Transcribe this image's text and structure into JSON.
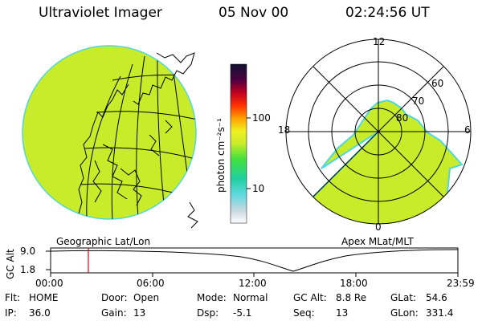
{
  "header": {
    "instrument": "Ultraviolet Imager",
    "date": "05 Nov 00",
    "time": "02:24:56 UT"
  },
  "colorbar": {
    "unit_label": "photon cm⁻²s⁻¹",
    "ticks": [
      "100",
      "10"
    ]
  },
  "globe_panel": {
    "label": "Geographic Lat/Lon"
  },
  "polar_panel": {
    "label": "Apex MLat/MLT",
    "mlt_labels": {
      "top": "12",
      "left": "18",
      "right": "6",
      "bottom": "0"
    },
    "lat_labels": [
      "60",
      "70",
      "80"
    ]
  },
  "altitude_plot": {
    "ylabel": "GC Alt",
    "y_ticks": [
      "9.0",
      "1.8"
    ],
    "x_ticks": [
      "00:00",
      "06:00",
      "12:00",
      "18:00",
      "23:59"
    ],
    "marker_time": "02:24:56"
  },
  "info": {
    "flt_label": "Flt:",
    "flt_value": "HOME",
    "ip_label": "IP:",
    "ip_value": "36.0",
    "door_label": "Door:",
    "door_value": "Open",
    "gain_label": "Gain:",
    "gain_value": "13",
    "mode_label": "Mode:",
    "mode_value": "Normal",
    "dsp_label": "Dsp:",
    "dsp_value": "-5.1",
    "gcalt_label": "GC Alt:",
    "gcalt_value": "8.8 Re",
    "seq_label": "Seq:",
    "seq_value": "13",
    "glat_label": "GLat:",
    "glat_value": "54.6",
    "glon_label": "GLon:",
    "glon_value": "331.4"
  },
  "colors": {
    "emission": "#c8ec2a",
    "limb": "#4fd6e0",
    "marker": "#dd0000"
  }
}
